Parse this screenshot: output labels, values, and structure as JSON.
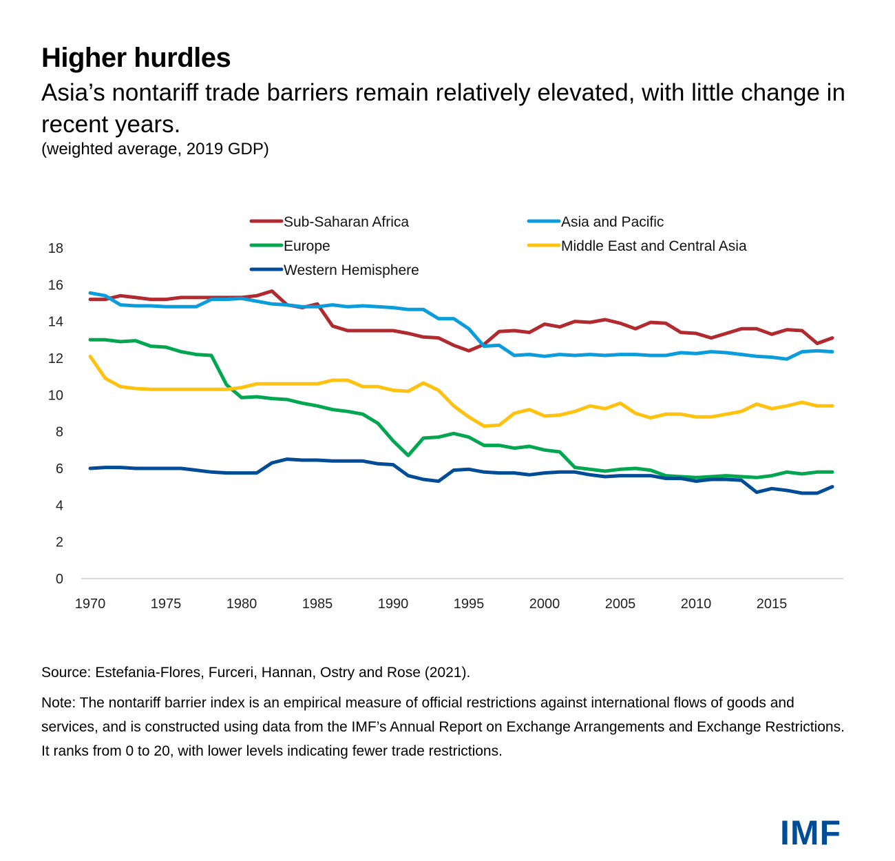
{
  "header": {
    "title": "Higher hurdles",
    "subtitle": "Asia’s nontariff trade barriers remain relatively elevated, with little change in recent years.",
    "units": "(weighted average, 2019 GDP)"
  },
  "footer": {
    "source": "Source: Estefania-Flores, Furceri, Hannan, Ostry and Rose (2021).",
    "note": "Note: The nontariff barrier index is an empirical measure of official restrictions against international flows of goods and services, and is constructed using data from the IMF’s Annual Report on Exchange Arrangements and Exchange Restrictions. It ranks from 0 to 20, with lower levels indicating fewer trade restrictions.",
    "logo": "IMF"
  },
  "chart_data": {
    "type": "line",
    "title": "Higher hurdles",
    "xlabel": "",
    "ylabel": "",
    "xlim": [
      1970,
      2019
    ],
    "ylim": [
      0,
      18
    ],
    "yticks": [
      0,
      2,
      4,
      6,
      8,
      10,
      12,
      14,
      16,
      18
    ],
    "xticks": [
      1970,
      1975,
      1980,
      1985,
      1990,
      1995,
      2000,
      2005,
      2010,
      2015
    ],
    "grid": false,
    "legend_position": "top",
    "x": [
      1970,
      1971,
      1972,
      1973,
      1974,
      1975,
      1976,
      1977,
      1978,
      1979,
      1980,
      1981,
      1982,
      1983,
      1984,
      1985,
      1986,
      1987,
      1988,
      1989,
      1990,
      1991,
      1992,
      1993,
      1994,
      1995,
      1996,
      1997,
      1998,
      1999,
      2000,
      2001,
      2002,
      2003,
      2004,
      2005,
      2006,
      2007,
      2008,
      2009,
      2010,
      2011,
      2012,
      2013,
      2014,
      2015,
      2016,
      2017,
      2018,
      2019
    ],
    "series": [
      {
        "name": "Sub-Saharan Africa",
        "color": "#b02a30",
        "values": [
          15.2,
          15.2,
          15.4,
          15.3,
          15.2,
          15.2,
          15.3,
          15.3,
          15.3,
          15.3,
          15.3,
          15.4,
          15.65,
          14.9,
          14.75,
          14.95,
          13.75,
          13.5,
          13.5,
          13.5,
          13.5,
          13.35,
          13.15,
          13.1,
          12.7,
          12.4,
          12.75,
          13.45,
          13.5,
          13.4,
          13.85,
          13.7,
          14.0,
          13.95,
          14.1,
          13.9,
          13.6,
          13.95,
          13.9,
          13.4,
          13.35,
          13.1,
          13.35,
          13.6,
          13.6,
          13.3,
          13.55,
          13.5,
          12.8,
          13.1
        ]
      },
      {
        "name": "Asia and Pacific",
        "color": "#0b9ddb",
        "values": [
          15.55,
          15.4,
          14.9,
          14.85,
          14.85,
          14.8,
          14.8,
          14.8,
          15.2,
          15.2,
          15.25,
          15.1,
          14.95,
          14.9,
          14.8,
          14.8,
          14.9,
          14.8,
          14.85,
          14.8,
          14.75,
          14.65,
          14.65,
          14.15,
          14.15,
          13.6,
          12.65,
          12.7,
          12.15,
          12.2,
          12.1,
          12.2,
          12.15,
          12.2,
          12.15,
          12.2,
          12.2,
          12.15,
          12.15,
          12.3,
          12.25,
          12.35,
          12.3,
          12.2,
          12.1,
          12.05,
          11.95,
          12.35,
          12.4,
          12.35
        ]
      },
      {
        "name": "Europe",
        "color": "#00a650",
        "values": [
          13.0,
          13.0,
          12.9,
          12.95,
          12.65,
          12.6,
          12.35,
          12.2,
          12.15,
          10.55,
          9.85,
          9.9,
          9.8,
          9.75,
          9.55,
          9.4,
          9.2,
          9.1,
          8.95,
          8.45,
          7.5,
          6.7,
          7.65,
          7.7,
          7.9,
          7.7,
          7.25,
          7.25,
          7.1,
          7.2,
          7.0,
          6.9,
          6.05,
          5.95,
          5.85,
          5.95,
          6.0,
          5.9,
          5.6,
          5.55,
          5.5,
          5.55,
          5.6,
          5.55,
          5.5,
          5.6,
          5.8,
          5.7,
          5.8,
          5.8
        ]
      },
      {
        "name": "Middle East and Central Asia",
        "color": "#ffc20e",
        "values": [
          12.1,
          10.9,
          10.45,
          10.35,
          10.3,
          10.3,
          10.3,
          10.3,
          10.3,
          10.3,
          10.4,
          10.6,
          10.6,
          10.6,
          10.6,
          10.6,
          10.8,
          10.8,
          10.45,
          10.45,
          10.25,
          10.2,
          10.65,
          10.25,
          9.4,
          8.8,
          8.3,
          8.35,
          9.0,
          9.2,
          8.85,
          8.9,
          9.1,
          9.4,
          9.25,
          9.55,
          9.0,
          8.75,
          8.95,
          8.95,
          8.8,
          8.8,
          8.95,
          9.1,
          9.5,
          9.25,
          9.4,
          9.6,
          9.4,
          9.4
        ]
      },
      {
        "name": "Western Hemisphere",
        "color": "#004c97",
        "values": [
          6.0,
          6.05,
          6.05,
          6.0,
          6.0,
          6.0,
          6.0,
          5.9,
          5.8,
          5.75,
          5.75,
          5.75,
          6.3,
          6.5,
          6.45,
          6.45,
          6.4,
          6.4,
          6.4,
          6.25,
          6.2,
          5.6,
          5.4,
          5.3,
          5.9,
          5.95,
          5.8,
          5.75,
          5.75,
          5.65,
          5.75,
          5.8,
          5.8,
          5.65,
          5.55,
          5.6,
          5.6,
          5.6,
          5.45,
          5.45,
          5.3,
          5.4,
          5.4,
          5.35,
          4.7,
          4.9,
          4.8,
          4.65,
          4.65,
          5.0
        ]
      }
    ]
  }
}
